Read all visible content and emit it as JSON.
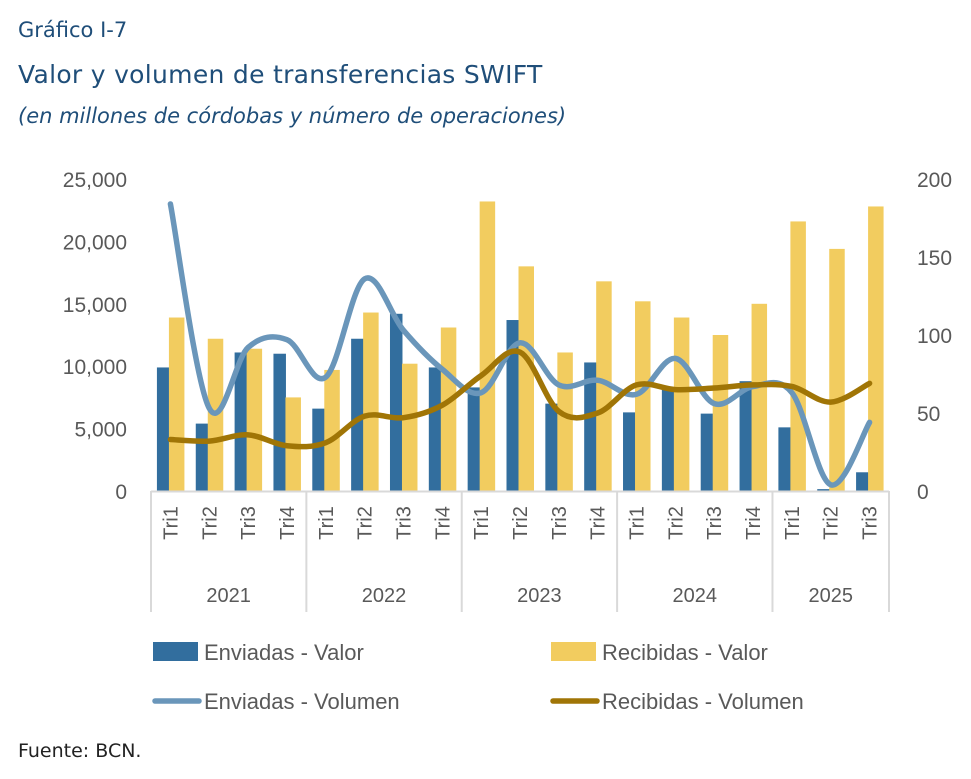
{
  "header": {
    "figure_label": "Gráfico I-7",
    "title": "Valor y volumen de transferencias SWIFT",
    "subtitle": "(en millones de córdobas y número de operaciones)"
  },
  "footer": {
    "source": "Fuente: BCN."
  },
  "colors": {
    "enviadas_valor": "#326e9e",
    "recibidas_valor": "#f2cc5f",
    "enviadas_volumen": "#6a96ba",
    "recibidas_volumen": "#a07506",
    "axis_text": "#595959",
    "axis_line": "#d9d9d9"
  },
  "chart_data": {
    "type": "bar",
    "title": "Valor y volumen de transferencias SWIFT",
    "subtitle": "(en millones de córdobas y número de operaciones)",
    "xlabel": "",
    "ylabel": "",
    "groups": [
      {
        "year": "2021",
        "quarters": [
          "Tri1",
          "Tri2",
          "Tri3",
          "Tri4"
        ]
      },
      {
        "year": "2022",
        "quarters": [
          "Tri1",
          "Tri2",
          "Tri3",
          "Tri4"
        ]
      },
      {
        "year": "2023",
        "quarters": [
          "Tri1",
          "Tri2",
          "Tri3",
          "Tri4"
        ]
      },
      {
        "year": "2024",
        "quarters": [
          "Tri1",
          "Tri2",
          "Tri3",
          "Tri4"
        ]
      },
      {
        "year": "2025",
        "quarters": [
          "Tri1",
          "Tri2",
          "Tri3"
        ]
      }
    ],
    "y_left": {
      "range": [
        0,
        25000
      ],
      "ticks": [
        "0",
        "5,000",
        "10,000",
        "15,000",
        "20,000",
        "25,000"
      ],
      "tick_values": [
        0,
        5000,
        10000,
        15000,
        20000,
        25000
      ]
    },
    "y_right": {
      "range": [
        0,
        200
      ],
      "ticks": [
        "0",
        "50",
        "100",
        "150",
        "200"
      ],
      "tick_values": [
        0,
        50,
        100,
        150,
        200
      ]
    },
    "grid": false,
    "legend_position": "bottom",
    "series": [
      {
        "name": "Enviadas - Valor",
        "kind": "bar",
        "axis": "left",
        "values": [
          9900,
          5400,
          11100,
          11000,
          6600,
          12200,
          14200,
          9900,
          8300,
          13700,
          7000,
          10300,
          6300,
          8100,
          6200,
          8800,
          5100,
          150,
          1500
        ]
      },
      {
        "name": "Recibidas - Valor",
        "kind": "bar",
        "axis": "left",
        "values": [
          13900,
          12200,
          11400,
          7500,
          9700,
          14300,
          10200,
          13100,
          23200,
          18000,
          11100,
          16800,
          15200,
          13900,
          12500,
          15000,
          21600,
          19400,
          22800
        ]
      },
      {
        "name": "Enviadas - Volumen",
        "kind": "line",
        "axis": "right",
        "values": [
          184,
          53,
          92,
          97,
          73,
          136,
          103,
          78,
          63,
          95,
          68,
          71,
          62,
          85,
          56,
          67,
          63,
          4,
          44
        ]
      },
      {
        "name": "Recibidas - Volumen",
        "kind": "line",
        "axis": "right",
        "values": [
          33,
          32,
          36,
          29,
          31,
          48,
          47,
          55,
          74,
          89,
          51,
          50,
          68,
          65,
          66,
          68,
          67,
          57,
          69
        ]
      }
    ]
  },
  "legend": [
    {
      "label": "Enviadas - Valor",
      "kind": "bar"
    },
    {
      "label": "Recibidas - Valor",
      "kind": "bar"
    },
    {
      "label": "Enviadas - Volumen",
      "kind": "line"
    },
    {
      "label": "Recibidas - Volumen",
      "kind": "line"
    }
  ]
}
